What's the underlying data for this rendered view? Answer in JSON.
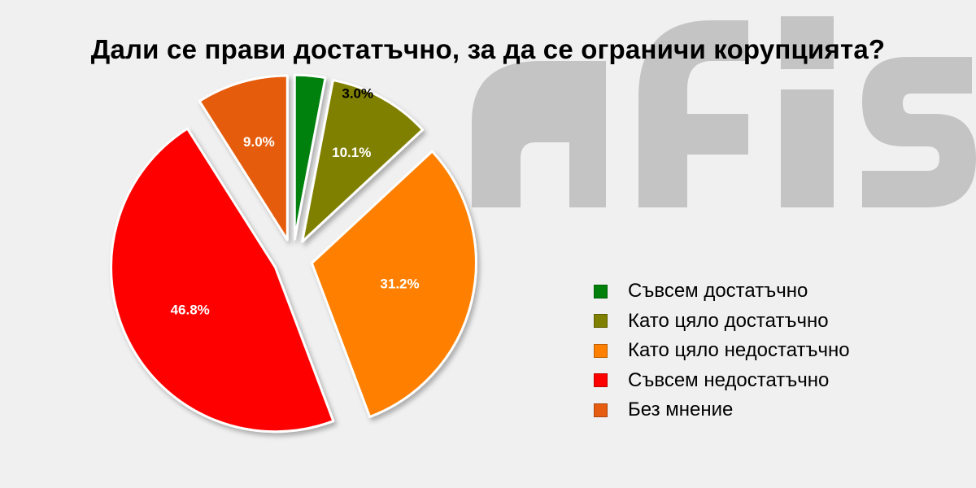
{
  "title": "Дали се прави достатъчно, за да се ограничи корупцията?",
  "watermark": {
    "text": "afis",
    "color": "#c4c4c4"
  },
  "chart_data": {
    "type": "pie",
    "title": "Дали се прави достатъчно, за да се ограничи корупцията?",
    "legend_placement": "right",
    "slices": [
      {
        "name": "Съвсем достатъчно",
        "value": 3.0,
        "label": "3.0%",
        "color": "#00800a",
        "label_color": "#000000"
      },
      {
        "name": "Като цяло достатъчно",
        "value": 10.1,
        "label": "10.1%",
        "color": "#808000",
        "label_color": "#ffffff"
      },
      {
        "name": "Като цяло недостатъчно",
        "value": 31.2,
        "label": "31.2%",
        "color": "#ff8000",
        "label_color": "#ffffff"
      },
      {
        "name": "Съвсем недостатъчно",
        "value": 46.8,
        "label": "46.8%",
        "color": "#ff0000",
        "label_color": "#ffffff"
      },
      {
        "name": "Без мнение",
        "value": 9.0,
        "label": "9.0%",
        "color": "#e65c10",
        "label_color": "#ffffff"
      }
    ]
  }
}
